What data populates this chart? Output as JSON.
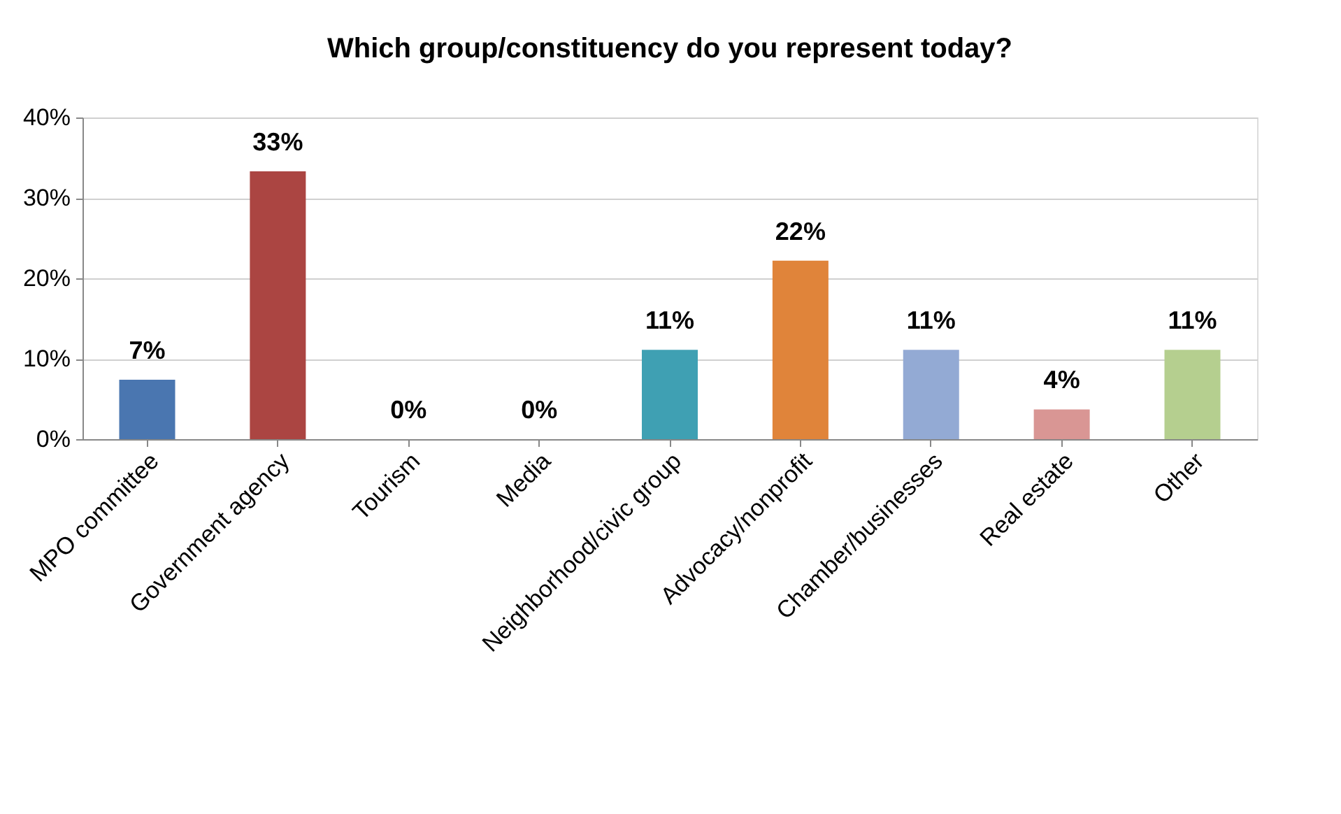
{
  "chart_data": {
    "type": "bar",
    "title": "Which group/constituency do you represent today?",
    "categories": [
      "MPO committee",
      "Government agency",
      "Tourism",
      "Media",
      "Neighborhood/civic group",
      "Advocacy/nonprofit",
      "Chamber/businesses",
      "Real estate",
      "Other"
    ],
    "values": [
      7.4,
      33.3,
      0,
      0,
      11.1,
      22.2,
      11.1,
      3.7,
      11.1
    ],
    "value_labels": [
      "7%",
      "33%",
      "0%",
      "0%",
      "11%",
      "22%",
      "11%",
      "4%",
      "11%"
    ],
    "colors": [
      "#4a76b0",
      "#ab4542",
      "#8db354",
      "#7d5fa0",
      "#3fa0b3",
      "#e0843a",
      "#93aad4",
      "#d99694",
      "#b5cf8f"
    ],
    "ylim": [
      0,
      40
    ],
    "yticks": [
      {
        "value": 0,
        "label": "0%"
      },
      {
        "value": 10,
        "label": "10%"
      },
      {
        "value": 20,
        "label": "20%"
      },
      {
        "value": 30,
        "label": "30%"
      },
      {
        "value": 40,
        "label": "40%"
      }
    ],
    "grid": "y",
    "legend": false
  }
}
